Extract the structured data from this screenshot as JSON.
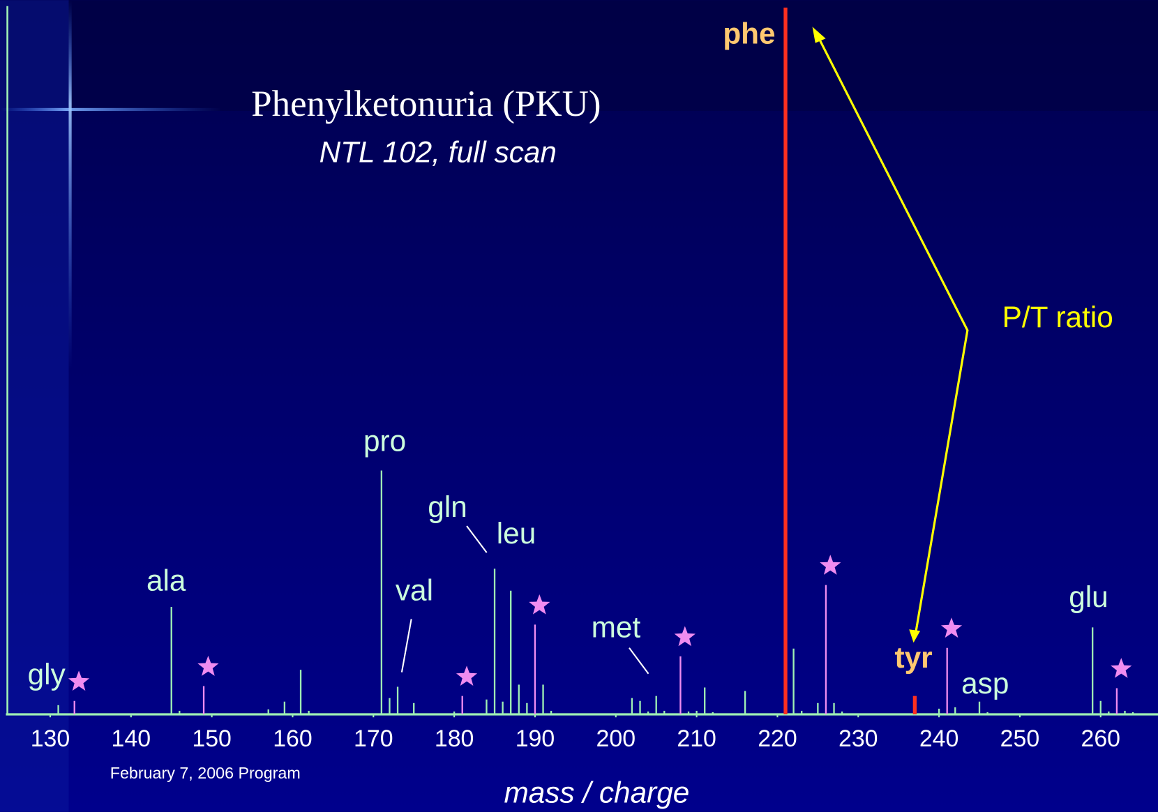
{
  "chart_data": {
    "type": "spectrum",
    "title": "Phenylketonuria (PKU)",
    "subtitle": "NTL 102, full scan",
    "x_label": "mass / charge",
    "footer": "February 7, 2006 Program",
    "xlim": [
      124.7,
      267.1
    ],
    "xticks": [
      130,
      140,
      150,
      160,
      170,
      180,
      190,
      200,
      210,
      220,
      230,
      240,
      250,
      260
    ],
    "ylim": [
      0,
      100
    ],
    "series": [
      {
        "color": "#9ff0b4",
        "x": [
          131,
          145,
          146,
          157,
          159,
          161,
          162,
          171,
          172,
          173,
          175,
          180,
          184,
          185,
          186,
          187,
          188,
          189,
          191,
          192,
          202,
          203,
          204,
          205,
          206,
          209,
          210,
          211,
          212,
          216,
          222,
          223,
          225,
          227,
          228,
          240,
          242,
          245,
          246,
          259,
          260,
          261,
          263,
          264
        ],
        "values": [
          1.3,
          15.2,
          0.5,
          0.7,
          1.8,
          6.3,
          0.5,
          34.5,
          2.3,
          3.9,
          1.6,
          0.4,
          2.1,
          20.6,
          1.8,
          17.5,
          4.2,
          1.6,
          4.2,
          0.5,
          2.3,
          1.9,
          0.4,
          2.6,
          0.5,
          0.4,
          0.5,
          3.8,
          0.3,
          3.3,
          9.3,
          0.5,
          1.6,
          1.6,
          0.4,
          0.8,
          1.0,
          1.8,
          0.3,
          12.3,
          1.9,
          0.4,
          0.5,
          0.3
        ]
      },
      {
        "color": "#f08cf0",
        "marker": "star",
        "x": [
          133,
          149,
          181,
          190,
          208,
          226,
          241,
          262
        ],
        "values": [
          1.9,
          4.0,
          2.6,
          12.7,
          8.2,
          18.3,
          9.4,
          3.7
        ]
      },
      {
        "color": "#ff3020",
        "x": [
          221,
          237
        ],
        "values": [
          100,
          2.6
        ]
      }
    ],
    "annotations": [
      "phe",
      "P/T ratio",
      "tyr",
      "pro",
      "gln",
      "leu",
      "ala",
      "val",
      "met",
      "gly",
      "asp",
      "glu"
    ]
  }
}
